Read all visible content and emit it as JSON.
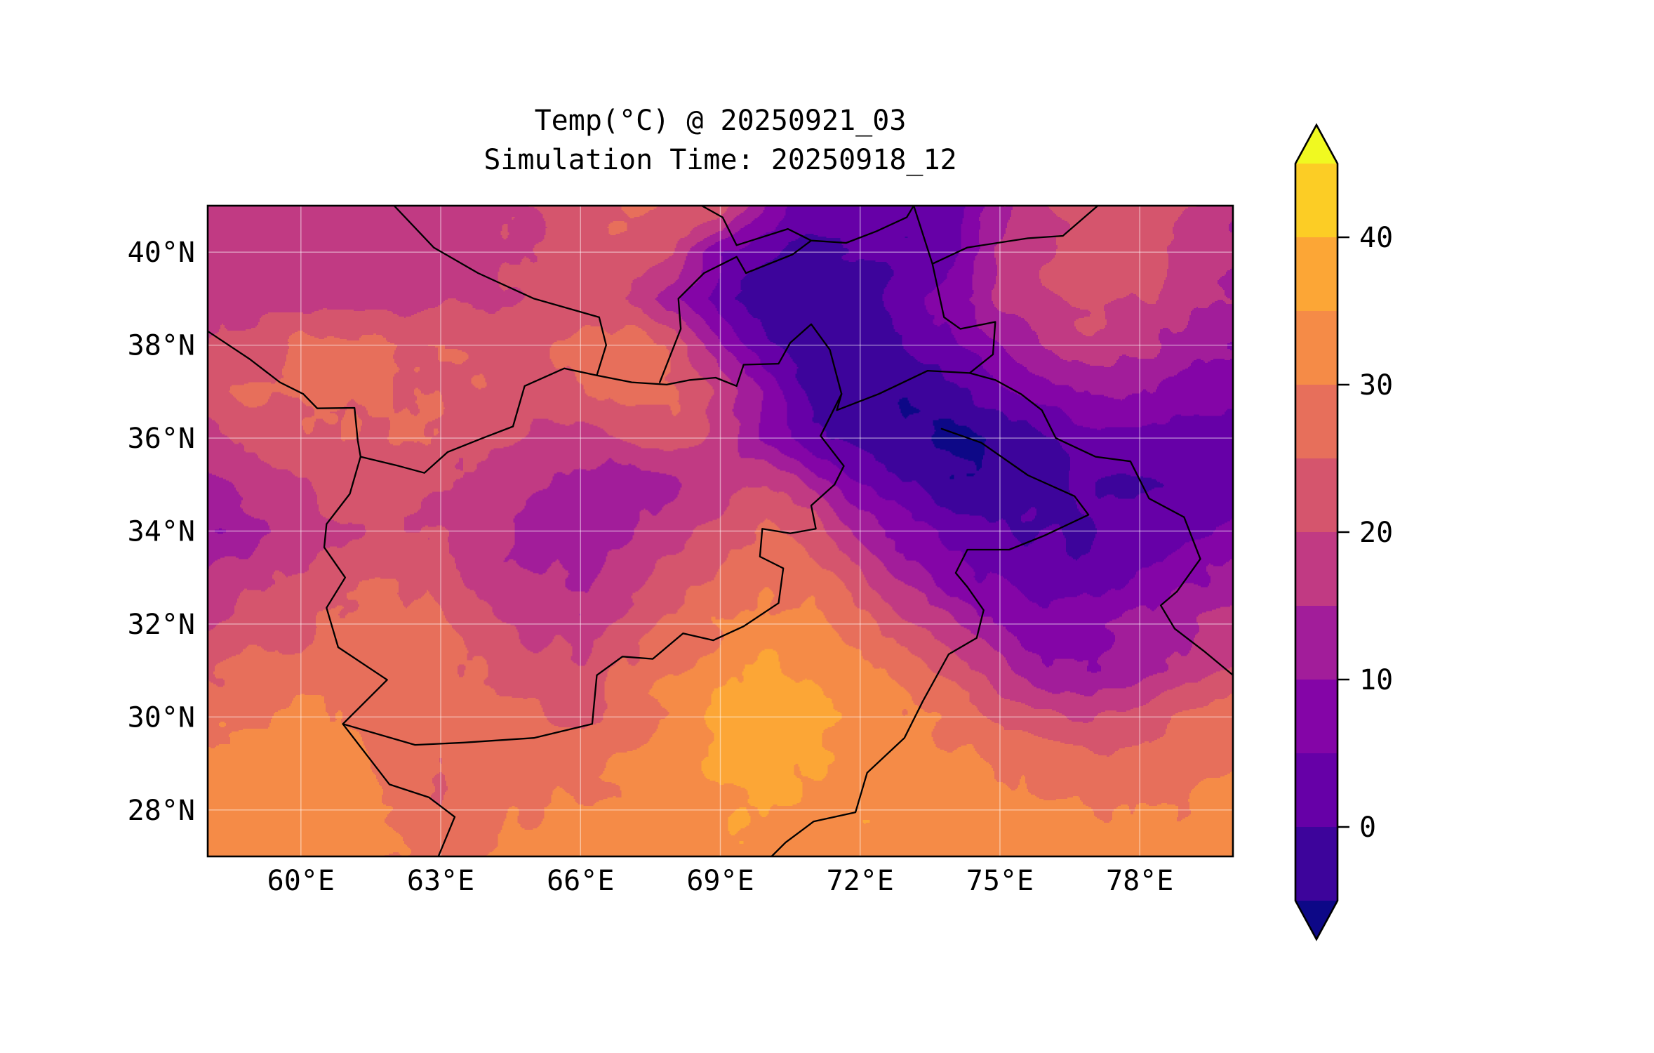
{
  "title": {
    "line1": "Temp(°C) @ 20250921_03",
    "line2": "Simulation Time: 20250918_12"
  },
  "chart_data": {
    "type": "heatmap",
    "title": "Temp(°C) @ 20250921_03",
    "subtitle": "Simulation Time: 20250918_12",
    "variable": "Temperature (°C)",
    "valid_time_label": "20250921_03",
    "simulation_time_label": "20250918_12",
    "gridlines": true,
    "legend_position": "right-colorbar",
    "x_axis": {
      "range": [
        58,
        80
      ],
      "ticks": [
        {
          "value": 60,
          "label": "60°E"
        },
        {
          "value": 63,
          "label": "63°E"
        },
        {
          "value": 66,
          "label": "66°E"
        },
        {
          "value": 69,
          "label": "69°E"
        },
        {
          "value": 72,
          "label": "72°E"
        },
        {
          "value": 75,
          "label": "75°E"
        },
        {
          "value": 78,
          "label": "78°E"
        }
      ]
    },
    "y_axis": {
      "range": [
        27,
        41
      ],
      "ticks": [
        {
          "value": 40,
          "label": "40°N"
        },
        {
          "value": 38,
          "label": "38°N"
        },
        {
          "value": 36,
          "label": "36°N"
        },
        {
          "value": 34,
          "label": "34°N"
        },
        {
          "value": 32,
          "label": "32°N"
        },
        {
          "value": 30,
          "label": "30°N"
        },
        {
          "value": 28,
          "label": "28°N"
        }
      ]
    },
    "colorbar": {
      "extend": "both",
      "levels": [
        -5,
        0,
        5,
        10,
        15,
        20,
        25,
        30,
        35,
        40,
        45
      ],
      "ticks": [
        {
          "value": 40,
          "label": "40"
        },
        {
          "value": 30,
          "label": "30"
        },
        {
          "value": 20,
          "label": "20"
        },
        {
          "value": 10,
          "label": "10"
        },
        {
          "value": 0,
          "label": "0"
        }
      ],
      "under_color": "#0d0887",
      "over_color": "#f0f921",
      "band_colors": [
        "#3d049b",
        "#6600a7",
        "#8405a7",
        "#a21d9a",
        "#c13a83",
        "#d5556d",
        "#e76f5b",
        "#f58b47",
        "#fca636",
        "#fccd25"
      ]
    },
    "grid": {
      "lons": [
        58,
        59,
        60,
        61,
        62,
        63,
        64,
        65,
        66,
        67,
        68,
        69,
        70,
        71,
        72,
        73,
        74,
        75,
        76,
        77,
        78,
        79,
        80
      ],
      "lats": [
        41,
        40,
        39,
        38,
        37,
        36,
        35,
        34,
        33,
        32,
        31,
        30,
        29,
        28,
        27
      ],
      "temps_c": [
        [
          17,
          17,
          17,
          17,
          17,
          18,
          18,
          20,
          23,
          25,
          26,
          24,
          10,
          2,
          4,
          2,
          2,
          14,
          19,
          23,
          24,
          20,
          16
        ],
        [
          17,
          17,
          17,
          17,
          18,
          18,
          19,
          20,
          23,
          25,
          20,
          6,
          0,
          -2,
          0,
          0,
          4,
          16,
          20,
          24,
          22,
          19,
          16
        ],
        [
          18,
          18,
          18,
          18,
          18,
          19,
          19,
          20,
          22,
          20,
          12,
          2,
          -2,
          -4,
          -2,
          2,
          8,
          16,
          20,
          22,
          20,
          17,
          14
        ],
        [
          20,
          21,
          26,
          26,
          25,
          25,
          24,
          24,
          26,
          28,
          24,
          10,
          0,
          -4,
          -4,
          0,
          4,
          10,
          15,
          18,
          16,
          12,
          10
        ],
        [
          22,
          26,
          26,
          26,
          25,
          25,
          24,
          22,
          24,
          28,
          26,
          20,
          8,
          -2,
          -4,
          -4,
          -2,
          4,
          8,
          11,
          10,
          8,
          6
        ],
        [
          18,
          21,
          24,
          25,
          25,
          24,
          22,
          19,
          18,
          21,
          24,
          18,
          8,
          0,
          -2,
          -5,
          -6,
          -4,
          0,
          2,
          2,
          1,
          2
        ],
        [
          14,
          16,
          20,
          22,
          22,
          20,
          18,
          16,
          13,
          11,
          13,
          17,
          21,
          14,
          4,
          0,
          -4,
          -4,
          -2,
          0,
          0,
          1,
          3
        ],
        [
          10,
          13,
          17,
          20,
          22,
          20,
          16,
          13,
          12,
          14,
          18,
          22,
          26,
          23,
          14,
          7,
          3,
          1,
          0,
          0,
          2,
          4,
          7
        ],
        [
          16,
          18,
          21,
          24,
          25,
          22,
          18,
          16,
          14,
          18,
          22,
          26,
          28,
          28,
          21,
          13,
          7,
          4,
          2,
          3,
          6,
          9,
          11
        ],
        [
          20,
          22,
          24,
          26,
          27,
          26,
          22,
          18,
          17,
          22,
          26,
          30,
          32,
          32,
          27,
          21,
          15,
          9,
          6,
          8,
          12,
          14,
          17
        ],
        [
          24,
          26,
          27,
          28,
          28,
          27,
          24,
          22,
          21,
          26,
          30,
          33,
          36,
          34,
          32,
          27,
          23,
          17,
          12,
          9,
          13,
          17,
          21
        ],
        [
          28,
          30,
          32,
          30,
          28,
          26,
          25,
          26,
          24,
          28,
          32,
          36,
          38,
          36,
          34,
          31,
          28,
          24,
          21,
          19,
          22,
          25,
          27
        ],
        [
          32,
          33,
          34,
          32,
          28,
          25,
          26,
          28,
          28,
          30,
          33,
          36,
          37,
          35,
          34,
          33,
          31,
          29,
          27,
          27,
          28,
          29,
          30
        ],
        [
          33,
          34,
          34,
          33,
          30,
          26,
          28,
          30,
          30,
          32,
          33,
          34,
          35,
          34,
          34,
          33,
          33,
          32,
          31,
          30,
          30,
          31,
          32
        ],
        [
          34,
          34,
          33,
          32,
          30,
          28,
          30,
          32,
          32,
          33,
          33,
          34,
          34,
          34,
          34,
          34,
          33,
          33,
          32,
          32,
          31,
          32,
          32
        ]
      ]
    },
    "borders": [
      {
        "name": "iran-turkmenistan",
        "points": [
          [
            58.0,
            38.3
          ],
          [
            58.9,
            37.7
          ],
          [
            59.55,
            37.2
          ],
          [
            60.05,
            36.95
          ],
          [
            60.35,
            36.64
          ],
          [
            61.15,
            36.65
          ],
          [
            61.22,
            35.95
          ],
          [
            61.28,
            35.6
          ]
        ]
      },
      {
        "name": "iran-afghanistan",
        "points": [
          [
            61.28,
            35.6
          ],
          [
            61.05,
            34.8
          ],
          [
            60.55,
            34.15
          ],
          [
            60.5,
            33.65
          ],
          [
            60.95,
            33.0
          ],
          [
            60.55,
            32.35
          ],
          [
            60.8,
            31.5
          ],
          [
            61.85,
            30.8
          ],
          [
            60.9,
            29.85
          ]
        ]
      },
      {
        "name": "iran-pakistan",
        "points": [
          [
            60.9,
            29.85
          ],
          [
            61.9,
            28.55
          ],
          [
            62.75,
            28.27
          ],
          [
            63.3,
            27.85
          ],
          [
            62.95,
            27.0
          ]
        ]
      },
      {
        "name": "afghanistan-turkmenistan",
        "points": [
          [
            61.28,
            35.6
          ],
          [
            62.1,
            35.4
          ],
          [
            62.65,
            35.25
          ],
          [
            63.15,
            35.7
          ],
          [
            63.9,
            36.0
          ],
          [
            64.55,
            36.25
          ],
          [
            64.8,
            37.12
          ],
          [
            65.65,
            37.5
          ],
          [
            66.35,
            37.35
          ]
        ]
      },
      {
        "name": "afghanistan-north-amu-darya",
        "points": [
          [
            66.35,
            37.35
          ],
          [
            67.1,
            37.2
          ],
          [
            67.85,
            37.15
          ],
          [
            68.35,
            37.25
          ],
          [
            68.9,
            37.3
          ],
          [
            69.35,
            37.12
          ],
          [
            69.5,
            37.58
          ],
          [
            70.25,
            37.6
          ],
          [
            70.5,
            38.05
          ],
          [
            70.95,
            38.45
          ],
          [
            71.35,
            37.9
          ],
          [
            71.6,
            36.95
          ],
          [
            71.5,
            36.6
          ],
          [
            72.4,
            36.95
          ],
          [
            73.45,
            37.45
          ],
          [
            74.35,
            37.4
          ],
          [
            74.9,
            37.25
          ]
        ]
      },
      {
        "name": "turkmenistan-uzbekistan",
        "points": [
          [
            62.0,
            41.0
          ],
          [
            62.85,
            40.1
          ],
          [
            63.8,
            39.55
          ],
          [
            65.0,
            39.0
          ],
          [
            66.4,
            38.6
          ],
          [
            66.55,
            38.0
          ],
          [
            66.35,
            37.35
          ]
        ]
      },
      {
        "name": "fergana-north",
        "points": [
          [
            68.6,
            41.0
          ],
          [
            69.05,
            40.75
          ],
          [
            69.35,
            40.15
          ],
          [
            70.45,
            40.5
          ],
          [
            70.95,
            40.25
          ],
          [
            71.7,
            40.2
          ],
          [
            72.35,
            40.45
          ],
          [
            73.0,
            40.75
          ],
          [
            73.15,
            41.0
          ]
        ]
      },
      {
        "name": "fergana-south",
        "points": [
          [
            70.95,
            40.25
          ],
          [
            70.55,
            39.95
          ],
          [
            69.55,
            39.55
          ],
          [
            69.35,
            39.9
          ],
          [
            68.65,
            39.55
          ],
          [
            68.1,
            39.0
          ],
          [
            68.15,
            38.35
          ],
          [
            67.7,
            37.2
          ]
        ]
      },
      {
        "name": "kyrgyzstan-china",
        "points": [
          [
            73.15,
            41.0
          ],
          [
            73.55,
            39.75
          ],
          [
            74.3,
            40.1
          ],
          [
            75.6,
            40.3
          ],
          [
            76.35,
            40.35
          ],
          [
            77.1,
            41.0
          ]
        ]
      },
      {
        "name": "tajikistan-china",
        "points": [
          [
            73.55,
            39.75
          ],
          [
            73.8,
            38.6
          ],
          [
            74.15,
            38.35
          ],
          [
            74.9,
            38.5
          ],
          [
            74.85,
            37.8
          ],
          [
            74.35,
            37.4
          ]
        ]
      },
      {
        "name": "china-pakistan-india",
        "points": [
          [
            74.9,
            37.25
          ],
          [
            75.45,
            36.95
          ],
          [
            75.9,
            36.6
          ],
          [
            76.2,
            36.0
          ],
          [
            77.05,
            35.6
          ],
          [
            77.8,
            35.5
          ],
          [
            78.2,
            34.7
          ],
          [
            78.95,
            34.3
          ],
          [
            79.3,
            33.4
          ],
          [
            78.8,
            32.7
          ],
          [
            78.45,
            32.4
          ],
          [
            78.75,
            31.9
          ],
          [
            79.4,
            31.4
          ],
          [
            80.0,
            30.9
          ]
        ]
      },
      {
        "name": "pakistan-india",
        "points": [
          [
            73.75,
            36.2
          ],
          [
            74.6,
            35.9
          ],
          [
            75.6,
            35.2
          ],
          [
            76.6,
            34.75
          ],
          [
            76.9,
            34.35
          ],
          [
            75.95,
            33.9
          ],
          [
            75.2,
            33.6
          ],
          [
            74.3,
            33.6
          ],
          [
            74.05,
            33.1
          ],
          [
            74.3,
            32.8
          ],
          [
            74.65,
            32.3
          ],
          [
            74.5,
            31.7
          ],
          [
            73.9,
            31.35
          ],
          [
            73.35,
            30.35
          ],
          [
            72.95,
            29.55
          ],
          [
            72.15,
            28.8
          ],
          [
            71.9,
            27.95
          ],
          [
            71.0,
            27.75
          ],
          [
            70.4,
            27.3
          ],
          [
            70.1,
            27.0
          ]
        ]
      },
      {
        "name": "afghanistan-pakistan-durand",
        "points": [
          [
            71.6,
            36.95
          ],
          [
            71.15,
            36.05
          ],
          [
            71.65,
            35.4
          ],
          [
            71.45,
            35.0
          ],
          [
            70.95,
            34.55
          ],
          [
            71.05,
            34.05
          ],
          [
            70.5,
            33.95
          ],
          [
            69.9,
            34.05
          ],
          [
            69.85,
            33.45
          ],
          [
            70.35,
            33.2
          ],
          [
            70.25,
            32.45
          ],
          [
            69.5,
            31.95
          ],
          [
            68.85,
            31.65
          ],
          [
            68.2,
            31.8
          ],
          [
            67.55,
            31.25
          ],
          [
            66.9,
            31.3
          ],
          [
            66.35,
            30.9
          ],
          [
            66.25,
            29.85
          ],
          [
            65.0,
            29.55
          ],
          [
            63.5,
            29.45
          ],
          [
            62.45,
            29.4
          ],
          [
            60.9,
            29.85
          ]
        ]
      }
    ],
    "style": {
      "gridline_color": "rgba(255,255,255,0.5)",
      "border_color": "#000000",
      "frame_color": "#000000",
      "text_color": "#000000"
    }
  }
}
